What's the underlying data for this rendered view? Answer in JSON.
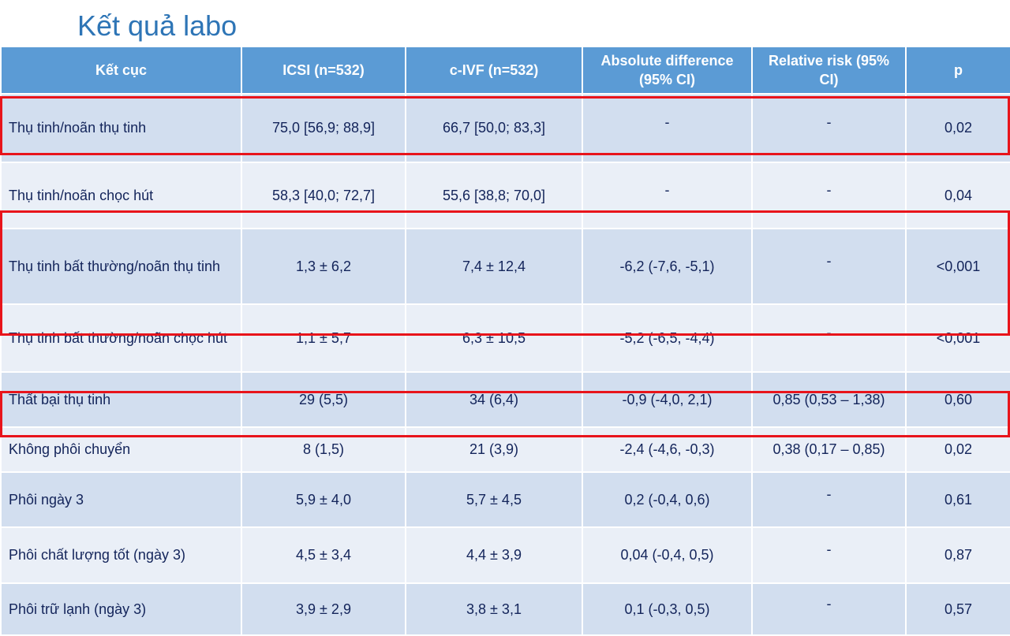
{
  "title": "Kết quả labo",
  "table": {
    "headers": [
      "Kết cục",
      "ICSI (n=532)",
      "c-IVF (n=532)",
      "Absolute difference (95% CI)",
      "Relative risk (95% CI)",
      "p"
    ],
    "rows": [
      {
        "outcome": "Thụ tinh/noãn thụ tinh",
        "icsi": "75,0 [56,9; 88,9]",
        "civf": "66,7 [50,0; 83,3]",
        "abs_diff": "-",
        "rr": "-",
        "p": "0,02",
        "highlighted": true
      },
      {
        "outcome": "Thụ tinh/noãn chọc hút",
        "icsi": "58,3 [40,0; 72,7]",
        "civf": "55,6 [38,8; 70,0]",
        "abs_diff": "-",
        "rr": "-",
        "p": "0,04",
        "highlighted": false
      },
      {
        "outcome": "Thụ tinh bất thường/noãn thụ tinh",
        "icsi": "1,3 ± 6,2",
        "civf": "7,4 ± 12,4",
        "abs_diff": "-6,2 (-7,6, -5,1)",
        "rr": "-",
        "p": "<0,001",
        "highlighted": true
      },
      {
        "outcome": " Thụ tinh bất thường/noãn chọc hút",
        "icsi": "1,1 ± 5,7",
        "civf": "6,3 ± 10,5",
        "abs_diff": "-5,2 (-6,5, -4,4)",
        "rr": "-",
        "p": "<0,001",
        "highlighted": true
      },
      {
        "outcome": "Thất bại thụ tinh",
        "icsi": "29 (5,5)",
        "civf": "34 (6,4)",
        "abs_diff": "-0,9 (-4,0, 2,1)",
        "rr": "0,85 (0,53 – 1,38)",
        "p": "0,60",
        "highlighted": false
      },
      {
        "outcome": "Không phôi chuyển",
        "icsi": "8 (1,5)",
        "civf": "21 (3,9)",
        "abs_diff": "-2,4 (-4,6, -0,3)",
        "rr": "0,38 (0,17 – 0,85)",
        "p": "0,02",
        "highlighted": true
      },
      {
        "outcome": "Phôi ngày 3",
        "icsi": "5,9 ± 4,0",
        "civf": "5,7 ± 4,5",
        "abs_diff": "0,2 (-0,4, 0,6)",
        "rr": "-",
        "p": "0,61",
        "highlighted": false
      },
      {
        "outcome": "Phôi chất lượng tốt (ngày 3)",
        "icsi": "4,5 ± 3,4",
        "civf": "4,4 ± 3,9",
        "abs_diff": "0,04 (-0,4, 0,5)",
        "rr": "-",
        "p": "0,87",
        "highlighted": false
      },
      {
        "outcome": "Phôi  trữ lạnh (ngày 3)",
        "icsi": "3,9 ± 2,9",
        "civf": "3,8 ± 3,1",
        "abs_diff": "0,1 (-0,3, 0,5)",
        "rr": "-",
        "p": "0,57",
        "highlighted": false
      }
    ]
  },
  "colors": {
    "header": "#5B9BD5",
    "row_dark": "#D2DEEF",
    "row_light": "#EAEFF7",
    "highlight": "#E8141B",
    "title": "#2E75B6"
  }
}
